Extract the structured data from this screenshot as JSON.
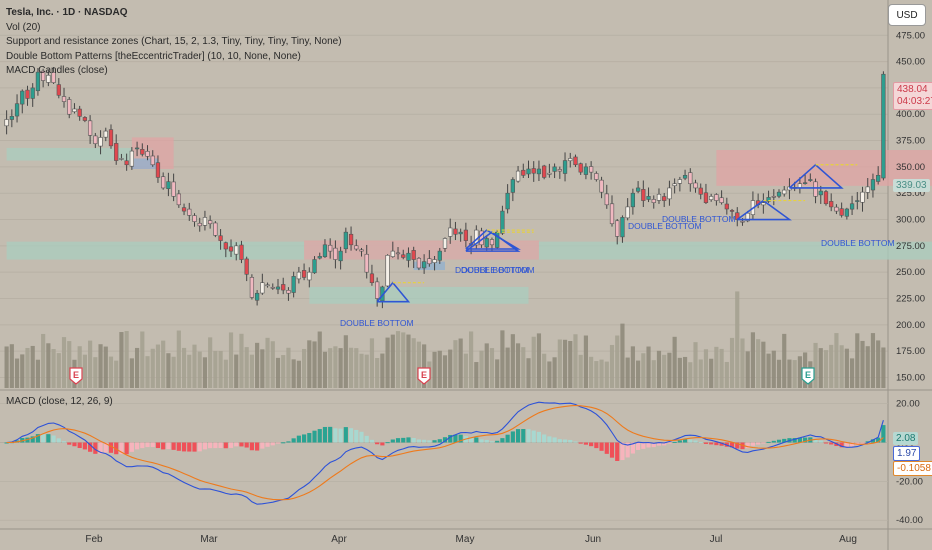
{
  "header": {
    "title": "Tesla, Inc. · 1D · NASDAQ",
    "indicators": [
      "Vol (20)",
      "Support and resistance zones (Chart, 15, 2, 1.3, Tiny, Tiny, Tiny, Tiny, None)",
      "Double Bottom Patterns [theEccentricTrader] (10, 10, None, None)",
      "MACD Candles (close)"
    ],
    "currency": "USD"
  },
  "macd": {
    "label": "MACD (close, 12, 26, 9)",
    "histogram_value": "2.08",
    "macd_value": "1.97",
    "signal_value": "-0.1058",
    "y_ticks": [
      "20.00",
      "0.00",
      "-20.00",
      "-40.00"
    ],
    "y_range": [
      -44,
      26
    ]
  },
  "price_axis": {
    "ticks": [
      "475.00",
      "450.00",
      "425.00",
      "400.00",
      "375.00",
      "350.00",
      "325.00",
      "300.00",
      "275.00",
      "250.00",
      "225.00",
      "200.00",
      "175.00",
      "150.00"
    ],
    "current_price": "438.04",
    "countdown": "04:03:27",
    "level_label": "339.03"
  },
  "time_axis": {
    "labels": [
      "Feb",
      "Mar",
      "Apr",
      "May",
      "Jun",
      "Jul",
      "Aug"
    ]
  },
  "annotations": {
    "pattern_labels": [
      "DOUBLE BOTTOM",
      "DOUBLE BOTTOM",
      "DOUBLE BOTTOM",
      "DOUBLE BOTTOM",
      "DOUBLE BOTTOM",
      "DOUBLE BOTTOM"
    ],
    "earnings_marker": "E"
  },
  "colors": {
    "up": "#2d9e8f",
    "down": "#e0484f",
    "up_light": "#f5f0e8",
    "down_light": "#f0b8c0",
    "macd_line": "#2d52d8",
    "signal_line": "#ee7a1c",
    "hist_up_strong": "#2aa392",
    "hist_up_weak": "#a8d8d0",
    "hist_down_strong": "#ef5058",
    "hist_down_weak": "#f6b4bc",
    "support_zone": "#a9cdbf",
    "resistance_zone": "#e0a4a4",
    "pattern": "#2f55d4"
  },
  "chart_data": {
    "type": "candlestick",
    "price_range": [
      140,
      480
    ],
    "closes": [
      395,
      398,
      410,
      422,
      415,
      425,
      440,
      432,
      437,
      430,
      418,
      412,
      400,
      405,
      398,
      394,
      380,
      372,
      378,
      384,
      370,
      356,
      358,
      352,
      365,
      368,
      362,
      360,
      352,
      340,
      330,
      336,
      322,
      314,
      308,
      304,
      298,
      294,
      302,
      296,
      285,
      280,
      272,
      270,
      275,
      262,
      248,
      226,
      230,
      240,
      238,
      235,
      236,
      233,
      230,
      246,
      250,
      245,
      250,
      262,
      265,
      276,
      270,
      262,
      270,
      288,
      276,
      272,
      270,
      250,
      240,
      225,
      236,
      266,
      270,
      268,
      264,
      268,
      262,
      254,
      260,
      258,
      262,
      270,
      282,
      292,
      286,
      288,
      280,
      276,
      290,
      276,
      282,
      276,
      288,
      308,
      325,
      338,
      346,
      342,
      348,
      344,
      348,
      340,
      344,
      350,
      346,
      356,
      358,
      352,
      345,
      350,
      345,
      338,
      326,
      314,
      296,
      284,
      302,
      312,
      325,
      330,
      318,
      322,
      316,
      324,
      318,
      330,
      334,
      338,
      342,
      334,
      330,
      324,
      316,
      322,
      318,
      316,
      310,
      308,
      300,
      298,
      306,
      318,
      314,
      316,
      321,
      322,
      326,
      328,
      331,
      330,
      334,
      335,
      338,
      322,
      327,
      315,
      312,
      308,
      304,
      310,
      315,
      318,
      326,
      331,
      338,
      342,
      438
    ],
    "volume_range": [
      0,
      1600
    ]
  }
}
